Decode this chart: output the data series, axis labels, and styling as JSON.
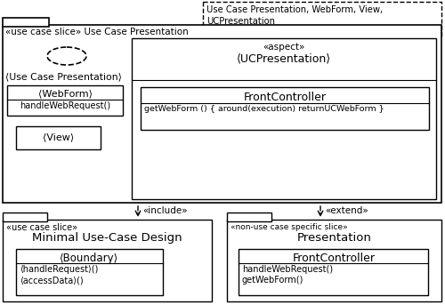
{
  "bg_color": "#ffffff",
  "dashed_title": "Use Case Presentation, WebForm, View,\nUCPresentation",
  "main_slice_label": "«use case slice» Use Case Presentation",
  "use_case_pres_label": "⟨Use Case Presentation⟩",
  "webform_title": "⟨WebForm⟩",
  "webform_method": "handleWebRequest()",
  "view_label": "⟨View⟩",
  "aspect_stereo": "«aspect»",
  "aspect_name": "⟨UCPresentation⟩",
  "front_controller_title": "FrontController",
  "front_controller_method": "getWebForm () { around(execution) returnUCWebForm }",
  "include_label": "«include»",
  "extend_label": "«extend»",
  "left_box_stereo": "«use case slice»",
  "left_box_name": "Minimal Use-Case Design",
  "boundary_title": "⟨Boundary⟩",
  "boundary_method1": "⟨handleRequest⟩()",
  "boundary_method2": "⟨accessData⟩()",
  "right_box_stereo": "«non-use case specific slice»",
  "right_box_name": "Presentation",
  "right_fc_title": "FrontController",
  "right_fc_method1": "handleWebRequest()",
  "right_fc_method2": "getWebForm()"
}
